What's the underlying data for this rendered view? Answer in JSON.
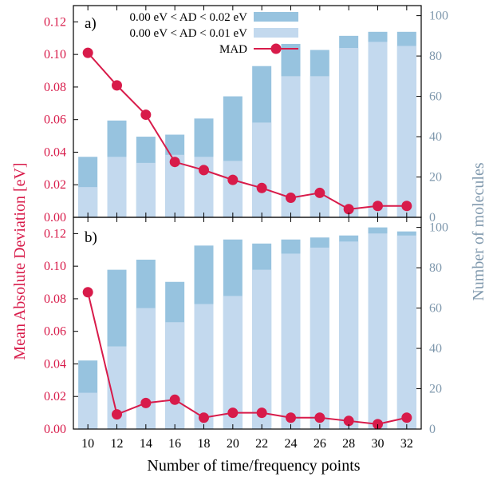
{
  "chart_data": {
    "type": "bar",
    "xlabel": "Number of time/frequency points",
    "ylabel_left": "Mean Absolute Deviation [eV]",
    "ylabel_right": "Number of molecules",
    "x_ticks": [
      "10",
      "12",
      "14",
      "16",
      "18",
      "20",
      "22",
      "24",
      "26",
      "28",
      "30",
      "32"
    ],
    "left_axis": {
      "ylim": [
        0,
        0.13
      ],
      "ticks": [
        "0.00",
        "0.02",
        "0.04",
        "0.06",
        "0.08",
        "0.10",
        "0.12"
      ]
    },
    "right_axis": {
      "ylim": [
        0,
        105
      ],
      "ticks": [
        "0",
        "20",
        "40",
        "60",
        "80",
        "100"
      ]
    },
    "legend": [
      {
        "label": "0.00 eV < AD < 0.02 eV",
        "color": "#97c3df"
      },
      {
        "label": "0.00 eV < AD < 0.01 eV",
        "color": "#c3d9ee"
      },
      {
        "label": "MAD",
        "color": "#d81b4a"
      }
    ],
    "colors": {
      "dark_bar": "#97c3df",
      "light_bar": "#c3d9ee",
      "mad": "#d81b4a"
    },
    "panels": [
      {
        "label": "a)",
        "x": [
          10,
          12,
          14,
          16,
          18,
          20,
          22,
          24,
          26,
          28,
          30,
          32
        ],
        "count_ad_lt_002": [
          30,
          48,
          40,
          41,
          49,
          60,
          75,
          86,
          83,
          90,
          92,
          92
        ],
        "count_ad_lt_001": [
          15,
          30,
          27,
          31,
          30,
          28,
          47,
          70,
          70,
          84,
          87,
          85
        ],
        "mad": [
          0.101,
          0.081,
          0.063,
          0.034,
          0.029,
          0.023,
          0.018,
          0.012,
          0.015,
          0.005,
          0.007,
          0.007
        ]
      },
      {
        "label": "b)",
        "x": [
          10,
          12,
          14,
          16,
          18,
          20,
          22,
          24,
          26,
          28,
          30,
          32
        ],
        "count_ad_lt_002": [
          34,
          79,
          84,
          73,
          91,
          94,
          92,
          94,
          95,
          96,
          100,
          98
        ],
        "count_ad_lt_001": [
          18,
          41,
          60,
          53,
          62,
          66,
          79,
          87,
          90,
          93,
          97,
          96
        ],
        "mad": [
          0.084,
          0.009,
          0.016,
          0.018,
          0.007,
          0.01,
          0.01,
          0.007,
          0.007,
          0.005,
          0.003,
          0.007
        ]
      }
    ]
  }
}
